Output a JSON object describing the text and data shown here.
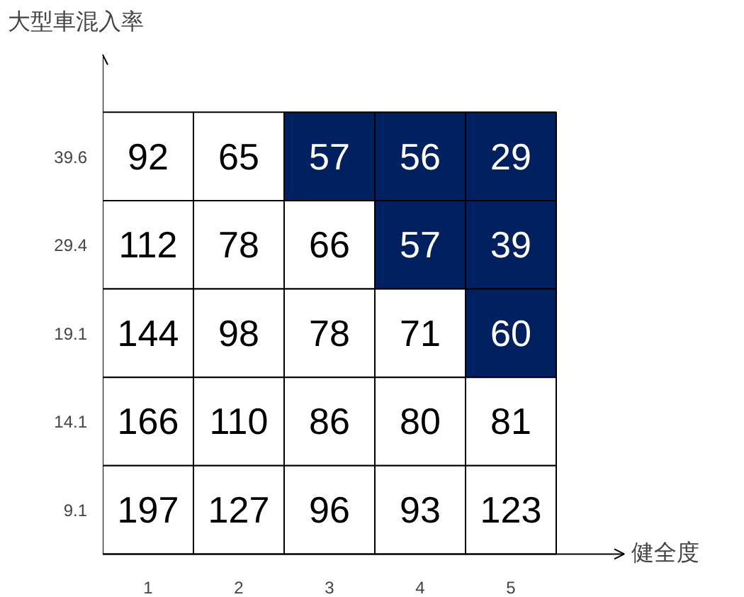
{
  "chart_data": {
    "type": "heatmap",
    "xlabel": "健全度",
    "ylabel": "大型車混入率",
    "data_labels": true,
    "categories": [
      "1",
      "2",
      "3",
      "4",
      "5"
    ],
    "y_categories": [
      "39.6",
      "29.4",
      "19.1",
      "14.1",
      "9.1"
    ],
    "cells": [
      [
        92,
        65,
        57,
        56,
        29
      ],
      [
        112,
        78,
        66,
        57,
        39
      ],
      [
        144,
        98,
        78,
        71,
        60
      ],
      [
        166,
        110,
        86,
        80,
        81
      ],
      [
        197,
        127,
        96,
        93,
        123
      ]
    ],
    "colors": [
      [
        "#ffffff",
        "#ffffff",
        "#002060",
        "#002060",
        "#002060"
      ],
      [
        "#ffffff",
        "#ffffff",
        "#ffffff",
        "#002060",
        "#002060"
      ],
      [
        "#ffffff",
        "#ffffff",
        "#ffffff",
        "#ffffff",
        "#002060"
      ],
      [
        "#ffffff",
        "#ffffff",
        "#ffffff",
        "#ffffff",
        "#ffffff"
      ],
      [
        "#ffffff",
        "#ffffff",
        "#ffffff",
        "#ffffff",
        "#ffffff"
      ]
    ]
  }
}
